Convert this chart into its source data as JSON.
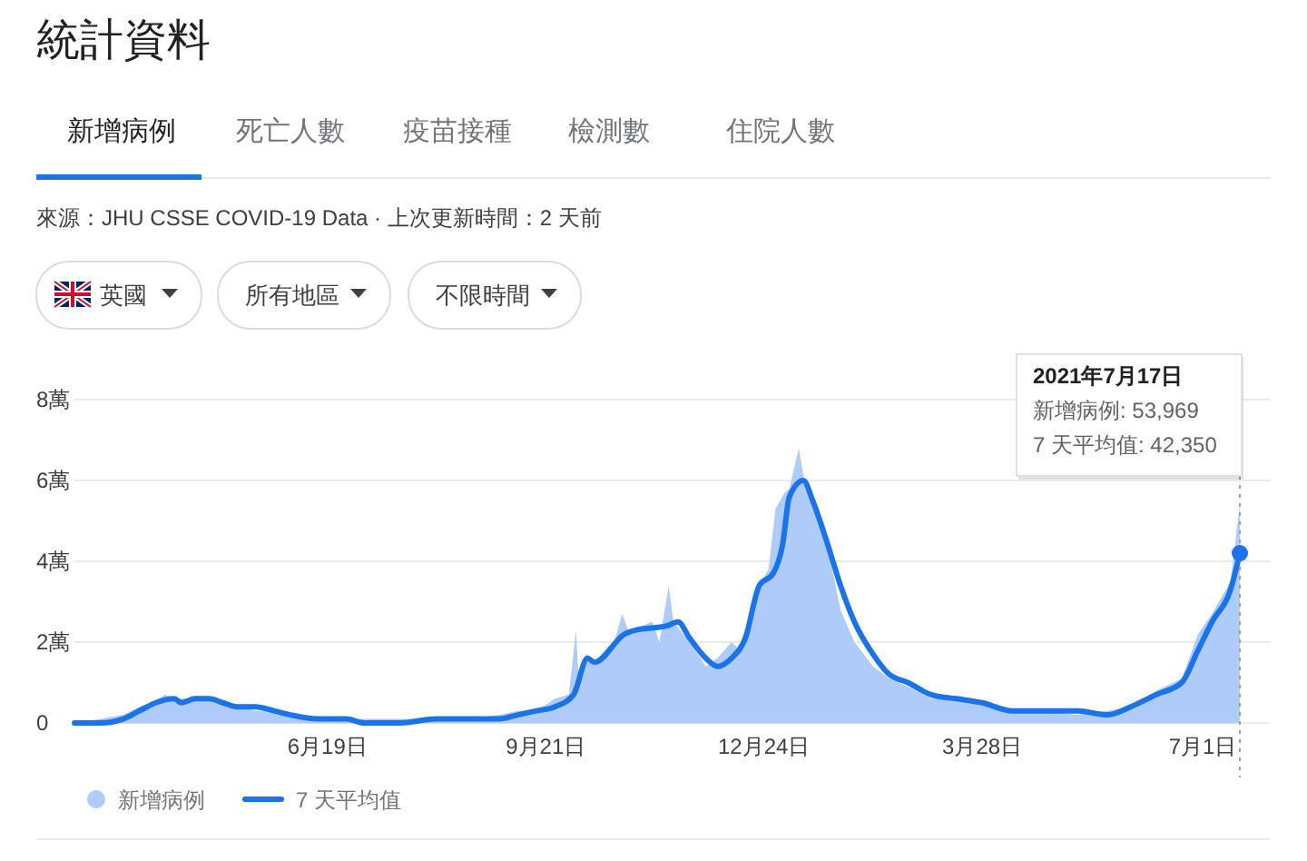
{
  "chart_data": {
    "type": "line",
    "title": "統計資料",
    "subtitle": "來源：JHU CSSE COVID-19 Data · 上次更新時間：2 天前",
    "annotations": [
      "新增病例",
      "死亡人數",
      "疫苗接種",
      "檢測數",
      "住院人數",
      "英國",
      "所有地區",
      "不限時間",
      "2021年7月17日",
      "新增病例: 53,969",
      "7 天平均值: 42,350"
    ],
    "xlim": [
      "2020-03-02",
      "2021-07-17"
    ],
    "xticks": [
      {
        "value": "2020-06-19",
        "label": "6月19日"
      },
      {
        "value": "2020-09-21",
        "label": "9月21日"
      },
      {
        "value": "2020-12-24",
        "label": "12月24日"
      },
      {
        "value": "2021-03-28",
        "label": "3月28日"
      },
      {
        "value": "2021-07-01",
        "label": "7月1日"
      }
    ],
    "ylim": [
      0,
      8
    ],
    "yticks": [
      0,
      {
        "value": 2,
        "label": "2萬"
      },
      {
        "value": 4,
        "label": "4萬"
      },
      {
        "value": 6,
        "label": "6萬"
      },
      {
        "value": 8,
        "label": "8萬"
      }
    ],
    "grid": "y",
    "legend": "bottom",
    "ref_lines": [
      {
        "axis": "x",
        "value": "2021-07-17",
        "color": "#9aa0a6",
        "line_style": "dotted"
      }
    ],
    "series": [
      {
        "name": "新增病例",
        "type": "area",
        "color": "#aecbfa",
        "x": [
          "2020-03-02",
          "2020-03-13",
          "2020-03-23",
          "2020-03-30",
          "2020-04-06",
          "2020-04-10",
          "2020-04-14",
          "2020-04-17",
          "2020-04-23",
          "2020-04-29",
          "2020-05-05",
          "2020-05-11",
          "2020-05-19",
          "2020-05-27",
          "2020-06-03",
          "2020-06-15",
          "2020-06-27",
          "2020-07-05",
          "2020-07-20",
          "2020-08-05",
          "2020-08-21",
          "2020-09-01",
          "2020-09-09",
          "2020-09-17",
          "2020-09-25",
          "2020-10-01",
          "2020-10-04",
          "2020-10-05",
          "2020-10-09",
          "2020-10-12",
          "2020-10-18",
          "2020-10-20",
          "2020-10-24",
          "2020-10-27",
          "2020-11-01",
          "2020-11-06",
          "2020-11-09",
          "2020-11-13",
          "2020-11-15",
          "2020-11-22",
          "2020-11-29",
          "2020-12-04",
          "2020-12-10",
          "2020-12-14",
          "2020-12-18",
          "2020-12-22",
          "2020-12-26",
          "2020-12-29",
          "2021-01-02",
          "2021-01-04",
          "2021-01-08",
          "2021-01-11",
          "2021-01-15",
          "2021-01-20",
          "2021-01-26",
          "2021-02-01",
          "2021-02-09",
          "2021-02-16",
          "2021-02-24",
          "2021-03-06",
          "2021-03-17",
          "2021-03-28",
          "2021-04-10",
          "2021-04-22",
          "2021-05-08",
          "2021-05-21",
          "2021-05-31",
          "2021-06-11",
          "2021-06-22",
          "2021-06-29",
          "2021-07-05",
          "2021-07-13",
          "2021-07-17"
        ],
        "values": [
          0,
          0.1,
          0.2,
          0.4,
          0.5,
          0.7,
          0.6,
          0.6,
          0.6,
          0.6,
          0.5,
          0.4,
          0.3,
          0.3,
          0.2,
          0.1,
          0.1,
          0.1,
          0.1,
          0.1,
          0.1,
          0.2,
          0.3,
          0.3,
          0.6,
          0.7,
          2.3,
          1.3,
          1.7,
          1.5,
          1.9,
          1.9,
          2.7,
          2.2,
          2.4,
          2.5,
          2,
          3.4,
          2.5,
          2,
          1.4,
          1.6,
          2,
          1.8,
          2.7,
          3.4,
          3.8,
          5.3,
          5.7,
          5.8,
          6.8,
          5.8,
          5.5,
          4.5,
          2.8,
          2,
          1.4,
          1.1,
          0.9,
          0.6,
          0.6,
          0.5,
          0.3,
          0.3,
          0.2,
          0.3,
          0.4,
          0.8,
          1.1,
          2.2,
          2.7,
          3.5,
          5.4
        ]
      },
      {
        "name": "7 天平均值",
        "color": "#1a73e8",
        "x": [
          "2020-03-02",
          "2020-03-13",
          "2020-03-23",
          "2020-03-30",
          "2020-04-06",
          "2020-04-14",
          "2020-04-17",
          "2020-04-23",
          "2020-04-29",
          "2020-05-05",
          "2020-05-11",
          "2020-05-19",
          "2020-05-27",
          "2020-06-03",
          "2020-06-15",
          "2020-06-27",
          "2020-07-05",
          "2020-07-20",
          "2020-08-05",
          "2020-08-21",
          "2020-09-01",
          "2020-09-09",
          "2020-09-17",
          "2020-09-25",
          "2020-10-03",
          "2020-10-09",
          "2020-10-12",
          "2020-10-25",
          "2020-10-30",
          "2020-11-12",
          "2020-11-17",
          "2020-11-22",
          "2020-11-29",
          "2020-12-04",
          "2020-12-10",
          "2020-12-16",
          "2020-12-22",
          "2020-12-28",
          "2021-01-01",
          "2021-01-04",
          "2021-01-10",
          "2021-01-14",
          "2021-01-20",
          "2021-01-26",
          "2021-02-01",
          "2021-02-09",
          "2021-02-16",
          "2021-02-24",
          "2021-03-06",
          "2021-03-17",
          "2021-03-28",
          "2021-04-10",
          "2021-04-22",
          "2021-05-08",
          "2021-05-21",
          "2021-05-31",
          "2021-06-11",
          "2021-06-22",
          "2021-06-29",
          "2021-07-05",
          "2021-07-13",
          "2021-07-17"
        ],
        "values": [
          0,
          0,
          0.1,
          0.3,
          0.5,
          0.6,
          0.5,
          0.6,
          0.6,
          0.5,
          0.4,
          0.4,
          0.3,
          0.2,
          0.1,
          0.1,
          0,
          0,
          0.1,
          0.1,
          0.1,
          0.2,
          0.3,
          0.4,
          0.7,
          1.6,
          1.5,
          2.2,
          2.3,
          2.4,
          2.5,
          2.1,
          1.6,
          1.4,
          1.6,
          2.1,
          3.4,
          3.7,
          4.4,
          5.6,
          6,
          5.5,
          4.5,
          3.4,
          2.5,
          1.7,
          1.2,
          1,
          0.7,
          0.6,
          0.5,
          0.3,
          0.3,
          0.3,
          0.2,
          0.4,
          0.7,
          1,
          1.8,
          2.5,
          3.3,
          4.2
        ]
      }
    ]
  }
}
